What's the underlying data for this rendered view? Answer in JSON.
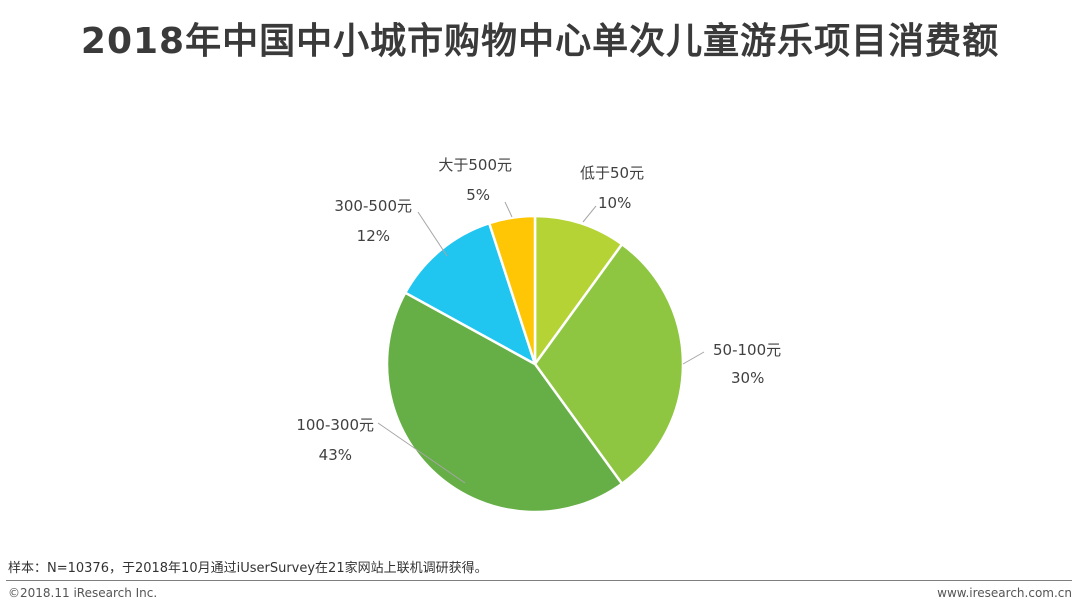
{
  "title": "2018年中国中小城市购物中心单次儿童游乐项目消费额",
  "footer": {
    "note": "样本：N=10376，于2018年10月通过iUserSurvey在21家网站上联机调研获得。",
    "copyright": "©2018.11 iResearch Inc.",
    "website": "www.iresearch.com.cn"
  },
  "chart_data": {
    "type": "pie",
    "title": "2018年中国中小城市购物中心单次儿童游乐项目消费额",
    "start_angle_deg": 0,
    "direction": "clockwise",
    "slices": [
      {
        "label": "低于50元",
        "value": 10,
        "display": "10%",
        "color": "#b5d334"
      },
      {
        "label": "50-100元",
        "value": 30,
        "display": "30%",
        "color": "#8ec641"
      },
      {
        "label": "100-300元",
        "value": 43,
        "display": "43%",
        "color": "#66ae46"
      },
      {
        "label": "300-500元",
        "value": 12,
        "display": "12%",
        "color": "#20c5f0"
      },
      {
        "label": "大于500元",
        "value": 5,
        "display": "5%",
        "color": "#fec605"
      }
    ]
  }
}
